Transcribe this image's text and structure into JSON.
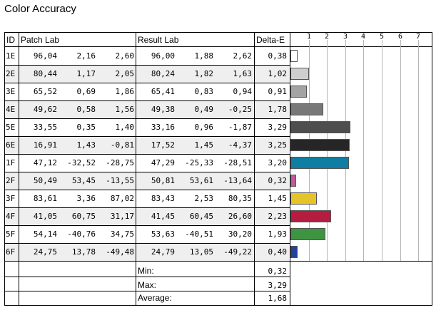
{
  "title": "Color Accuracy",
  "headers": {
    "id": "ID",
    "patch": "Patch Lab",
    "result": "Result Lab",
    "delta": "Delta-E"
  },
  "summary": [
    {
      "label": "Min:",
      "value": "0,32"
    },
    {
      "label": "Max:",
      "value": "3,29"
    },
    {
      "label": "Average:",
      "value": "1,68"
    }
  ],
  "chart_data": {
    "type": "table",
    "title": "Color Accuracy",
    "columns": [
      "ID",
      "Patch Lab L",
      "Patch Lab a",
      "Patch Lab b",
      "Result Lab L",
      "Result Lab a",
      "Result Lab b",
      "Delta-E"
    ],
    "x_ticks": [
      "1",
      "2",
      "3",
      "4",
      "5",
      "6",
      "7"
    ],
    "xlim": [
      0,
      7.6
    ],
    "rows": [
      {
        "id": "1E",
        "patch": [
          "96,04",
          "2,16",
          "2,60"
        ],
        "result": [
          "96,00",
          "1,88",
          "2,62"
        ],
        "delta": "0,38",
        "value": 0.38,
        "color": "#ffffff",
        "shaded": false
      },
      {
        "id": "2E",
        "patch": [
          "80,44",
          "1,17",
          "2,05"
        ],
        "result": [
          "80,24",
          "1,82",
          "1,63"
        ],
        "delta": "1,02",
        "value": 1.02,
        "color": "#cfcfcf",
        "shaded": true
      },
      {
        "id": "3E",
        "patch": [
          "65,52",
          "0,69",
          "1,86"
        ],
        "result": [
          "65,41",
          "0,83",
          "0,94"
        ],
        "delta": "0,91",
        "value": 0.91,
        "color": "#a3a3a3",
        "shaded": false
      },
      {
        "id": "4E",
        "patch": [
          "49,62",
          "0,58",
          "1,56"
        ],
        "result": [
          "49,38",
          "0,49",
          "-0,25"
        ],
        "delta": "1,78",
        "value": 1.78,
        "color": "#787878",
        "shaded": true
      },
      {
        "id": "5E",
        "patch": [
          "33,55",
          "0,35",
          "1,40"
        ],
        "result": [
          "33,16",
          "0,96",
          "-1,87"
        ],
        "delta": "3,29",
        "value": 3.29,
        "color": "#4e4e4e",
        "shaded": false
      },
      {
        "id": "6E",
        "patch": [
          "16,91",
          "1,43",
          "-0,81"
        ],
        "result": [
          "17,52",
          "1,45",
          "-4,37"
        ],
        "delta": "3,25",
        "value": 3.25,
        "color": "#262626",
        "shaded": true
      },
      {
        "id": "1F",
        "patch": [
          "47,12",
          "-32,52",
          "-28,75"
        ],
        "result": [
          "47,29",
          "-25,33",
          "-28,51"
        ],
        "delta": "3,20",
        "value": 3.2,
        "color": "#0e7fa3",
        "shaded": false
      },
      {
        "id": "2F",
        "patch": [
          "50,49",
          "53,45",
          "-13,55"
        ],
        "result": [
          "50,81",
          "53,61",
          "-13,64"
        ],
        "delta": "0,32",
        "value": 0.32,
        "color": "#c3589e",
        "shaded": true
      },
      {
        "id": "3F",
        "patch": [
          "83,61",
          "3,36",
          "87,02"
        ],
        "result": [
          "83,43",
          "2,53",
          "80,35"
        ],
        "delta": "1,45",
        "value": 1.45,
        "color": "#e5c42a",
        "shaded": false
      },
      {
        "id": "4F",
        "patch": [
          "41,05",
          "60,75",
          "31,17"
        ],
        "result": [
          "41,45",
          "60,45",
          "26,60"
        ],
        "delta": "2,23",
        "value": 2.23,
        "color": "#b51c3f",
        "shaded": true
      },
      {
        "id": "5F",
        "patch": [
          "54,14",
          "-40,76",
          "34,75"
        ],
        "result": [
          "53,63",
          "-40,51",
          "30,20"
        ],
        "delta": "1,93",
        "value": 1.93,
        "color": "#3f9441",
        "shaded": false
      },
      {
        "id": "6F",
        "patch": [
          "24,75",
          "13,78",
          "-49,48"
        ],
        "result": [
          "24,79",
          "13,05",
          "-49,22"
        ],
        "delta": "0,40",
        "value": 0.4,
        "color": "#22439a",
        "shaded": true
      }
    ]
  }
}
